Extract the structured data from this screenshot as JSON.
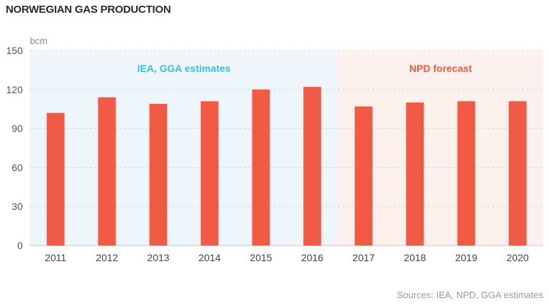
{
  "title": "NORWEGIAN GAS PRODUCTION",
  "source": "Sources: IEA, NPD, GGA estimates",
  "chart_data": {
    "type": "bar",
    "unit_label": "bcm",
    "ylim": [
      0,
      150
    ],
    "yticks": [
      0,
      30,
      60,
      90,
      120,
      150
    ],
    "grid": true,
    "categories": [
      "2011",
      "2012",
      "2013",
      "2014",
      "2015",
      "2016",
      "2017",
      "2018",
      "2019",
      "2020"
    ],
    "values": [
      102,
      114,
      109,
      111,
      120,
      122,
      107,
      110,
      111,
      111
    ],
    "bar_color": "#f15a45",
    "regions": [
      {
        "label": "IEA, GGA estimates",
        "from": "2011",
        "to": "2016",
        "color": "#eef6fb",
        "label_color": "#3bbfdf"
      },
      {
        "label": "NPD forecast",
        "from": "2017",
        "to": "2020",
        "color": "#fdf1ee",
        "label_color": "#f15a45"
      }
    ]
  }
}
